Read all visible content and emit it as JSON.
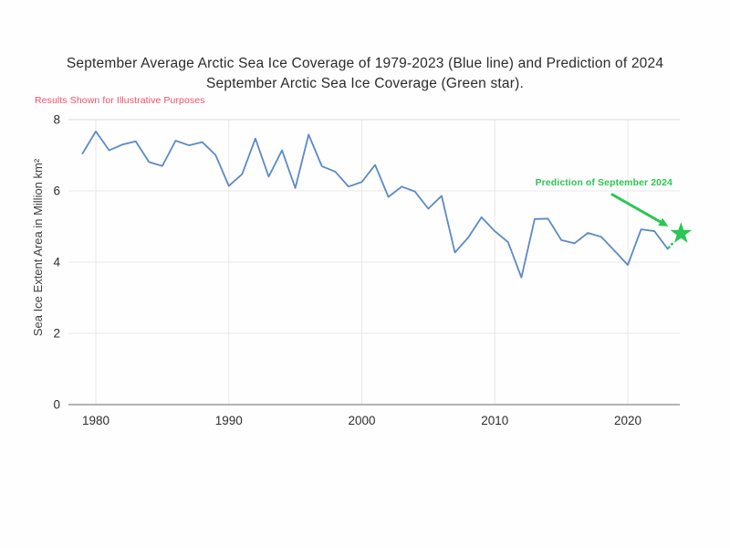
{
  "title": {
    "line1": "September Average Arctic Sea Ice Coverage of 1979-2023 (Blue line) and Prediction of 2024",
    "line2": "September Arctic Sea Ice Coverage (Green star)."
  },
  "disclaimer": "Results Shown for Illustrative Purposes",
  "chart_data": {
    "type": "line",
    "title": "September Average Arctic Sea Ice Coverage of 1979-2023 (Blue line) and Prediction of 2024 September Arctic Sea Ice Coverage (Green star).",
    "xlabel": "",
    "ylabel": "Sea Ice Extent Area in Million km²",
    "x_ticks": [
      1980,
      1990,
      2000,
      2010,
      2020
    ],
    "y_ticks": [
      0,
      2,
      4,
      6,
      8
    ],
    "xlim": [
      1978.9,
      2025
    ],
    "ylim": [
      0,
      8
    ],
    "grid": true,
    "legend_position": "none",
    "series": [
      {
        "name": "September average Arctic sea ice coverage 1979-2023 (Blue line)",
        "color": "#5b8ac6",
        "x": [
          1979,
          1980,
          1981,
          1982,
          1983,
          1984,
          1985,
          1986,
          1987,
          1988,
          1989,
          1990,
          1991,
          1992,
          1993,
          1994,
          1995,
          1996,
          1997,
          1998,
          1999,
          2000,
          2001,
          2002,
          2003,
          2004,
          2005,
          2006,
          2007,
          2008,
          2009,
          2010,
          2011,
          2012,
          2013,
          2014,
          2015,
          2016,
          2017,
          2018,
          2019,
          2020,
          2021,
          2022,
          2023
        ],
        "values": [
          7.05,
          7.67,
          7.14,
          7.3,
          7.39,
          6.81,
          6.7,
          7.41,
          7.28,
          7.37,
          7.01,
          6.14,
          6.47,
          7.47,
          6.4,
          7.14,
          6.08,
          7.58,
          6.69,
          6.54,
          6.12,
          6.25,
          6.73,
          5.83,
          6.12,
          5.98,
          5.5,
          5.86,
          4.27,
          4.69,
          5.26,
          4.87,
          4.56,
          3.57,
          5.21,
          5.22,
          4.62,
          4.53,
          4.82,
          4.71,
          4.32,
          3.92,
          4.92,
          4.87,
          4.37
        ]
      }
    ],
    "prediction": {
      "label": "Prediction of September 2024",
      "year": 2024,
      "value": 4.8,
      "marker": "star",
      "color": "#2bc653"
    },
    "colors": {
      "grid": "#e8e8e8",
      "grid_top": "#d9d9d9",
      "axis_baseline": "#a8a8a8",
      "tick_label": "#2e2e2e",
      "axis_title": "#3f3f3f",
      "title_text": "#2b2b2b",
      "disclaimer": "#f0506a"
    }
  }
}
